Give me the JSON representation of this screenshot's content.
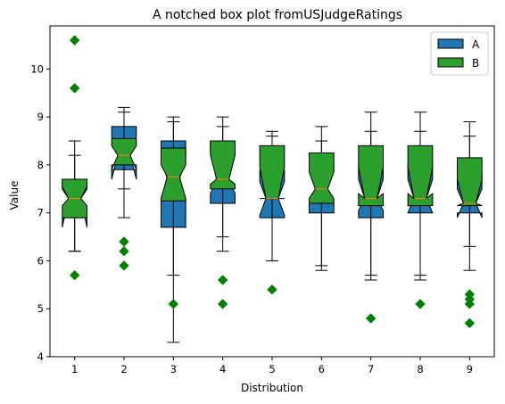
{
  "chart_data": {
    "type": "boxplot",
    "title": "A notched box plot fromUSJudgeRatings",
    "xlabel": "Distribution",
    "ylabel": "Value",
    "ylim": [
      4,
      10.9
    ],
    "yticks": [
      4,
      5,
      6,
      7,
      8,
      9,
      10
    ],
    "categories": [
      "1",
      "2",
      "3",
      "4",
      "5",
      "6",
      "7",
      "8",
      "9"
    ],
    "legend": {
      "position": "top-right"
    },
    "series": [
      {
        "name": "A",
        "color": "#1f77b4",
        "boxes": [
          {
            "whislo": 6.2,
            "q1": 6.9,
            "med": 7.3,
            "q3": 7.7,
            "whishi": 8.5,
            "notch_lo": 6.7,
            "notch_hi": 7.5,
            "fliers": []
          },
          {
            "whislo": 6.9,
            "q1": 7.9,
            "med": 8.2,
            "q3": 8.8,
            "whishi": 9.1,
            "notch_lo": 7.7,
            "notch_hi": 8.6,
            "fliers": []
          },
          {
            "whislo": 4.3,
            "q1": 6.7,
            "med": 7.7,
            "q3": 8.5,
            "whishi": 9.0,
            "notch_lo": 7.3,
            "notch_hi": 8.2,
            "fliers": []
          },
          {
            "whislo": 6.2,
            "q1": 7.2,
            "med": 7.7,
            "q3": 8.5,
            "whishi": 9.0,
            "notch_lo": 7.4,
            "notch_hi": 8.3,
            "fliers": []
          },
          {
            "whislo": 6.0,
            "q1": 6.9,
            "med": 7.3,
            "q3": 7.9,
            "whishi": 8.7,
            "notch_lo": 6.95,
            "notch_hi": 7.65,
            "fliers": []
          },
          {
            "whislo": 5.9,
            "q1": 7.0,
            "med": 7.5,
            "q3": 8.0,
            "whishi": 8.8,
            "notch_lo": 7.2,
            "notch_hi": 7.9,
            "fliers": []
          },
          {
            "whislo": 5.7,
            "q1": 6.9,
            "med": 7.3,
            "q3": 8.0,
            "whishi": 8.7,
            "notch_lo": 7.05,
            "notch_hi": 7.7,
            "fliers": []
          },
          {
            "whislo": 5.7,
            "q1": 7.0,
            "med": 7.3,
            "q3": 8.0,
            "whishi": 8.7,
            "notch_lo": 7.0,
            "notch_hi": 7.7,
            "fliers": []
          },
          {
            "whislo": 6.3,
            "q1": 7.0,
            "med": 7.2,
            "q3": 7.8,
            "whishi": 8.6,
            "notch_lo": 6.9,
            "notch_hi": 7.5,
            "fliers": []
          }
        ]
      },
      {
        "name": "B",
        "color": "#2ca02c",
        "boxes": [
          {
            "whislo": 6.2,
            "q1": 6.9,
            "med": 7.3,
            "q3": 7.7,
            "whishi": 8.2,
            "notch_lo": 7.15,
            "notch_hi": 7.55,
            "fliers": [
              10.6,
              9.6,
              5.7
            ]
          },
          {
            "whislo": 7.5,
            "q1": 8.0,
            "med": 8.2,
            "q3": 8.55,
            "whishi": 9.2,
            "notch_lo": 7.9,
            "notch_hi": 8.4,
            "fliers": [
              6.4,
              6.2,
              5.9
            ]
          },
          {
            "whislo": 5.7,
            "q1": 7.25,
            "med": 7.75,
            "q3": 8.35,
            "whishi": 8.9,
            "notch_lo": 7.3,
            "notch_hi": 8.0,
            "fliers": [
              5.1
            ]
          },
          {
            "whislo": 6.5,
            "q1": 7.5,
            "med": 7.7,
            "q3": 8.5,
            "whishi": 8.8,
            "notch_lo": 7.6,
            "notch_hi": 8.2,
            "fliers": [
              5.6,
              5.1
            ]
          },
          {
            "whislo": 6.0,
            "q1": 7.3,
            "med": 7.3,
            "q3": 8.4,
            "whishi": 8.6,
            "notch_lo": 7.3,
            "notch_hi": 7.95,
            "fliers": [
              5.4
            ]
          },
          {
            "whislo": 5.8,
            "q1": 7.2,
            "med": 7.5,
            "q3": 8.25,
            "whishi": 8.5,
            "notch_lo": 7.3,
            "notch_hi": 7.85,
            "fliers": []
          },
          {
            "whislo": 5.6,
            "q1": 7.15,
            "med": 7.3,
            "q3": 8.4,
            "whishi": 9.1,
            "notch_lo": 7.4,
            "notch_hi": 7.95,
            "fliers": [
              4.8
            ]
          },
          {
            "whislo": 5.6,
            "q1": 7.15,
            "med": 7.3,
            "q3": 8.4,
            "whishi": 9.1,
            "notch_lo": 7.4,
            "notch_hi": 7.95,
            "fliers": [
              5.1
            ]
          },
          {
            "whislo": 5.8,
            "q1": 7.15,
            "med": 7.2,
            "q3": 8.15,
            "whishi": 8.9,
            "notch_lo": 7.15,
            "notch_hi": 7.7,
            "fliers": [
              5.3,
              5.2,
              5.1,
              4.7
            ]
          }
        ]
      }
    ]
  }
}
